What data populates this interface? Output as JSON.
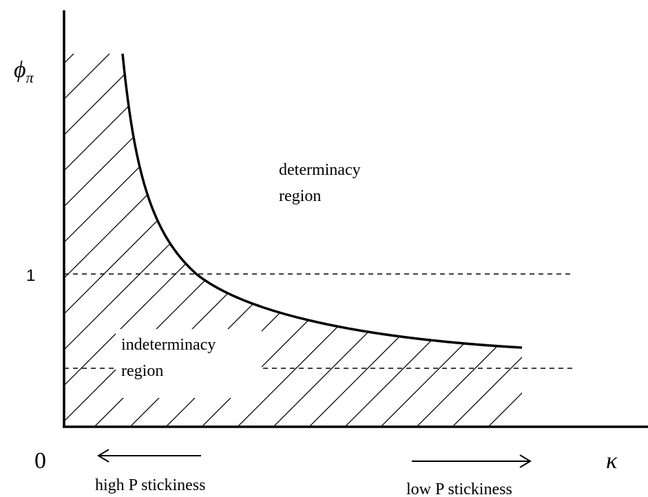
{
  "axes": {
    "y_label": {
      "symbol": "ϕ",
      "subscript": "π"
    },
    "x_label": "κ",
    "origin": "0",
    "y_tick": "1"
  },
  "regions": {
    "determinacy": [
      "determinacy",
      "region"
    ],
    "indeterminacy": [
      "indeterminacy",
      "region"
    ]
  },
  "arrows": {
    "left": "high P stickiness",
    "right": "low P stickiness"
  }
}
